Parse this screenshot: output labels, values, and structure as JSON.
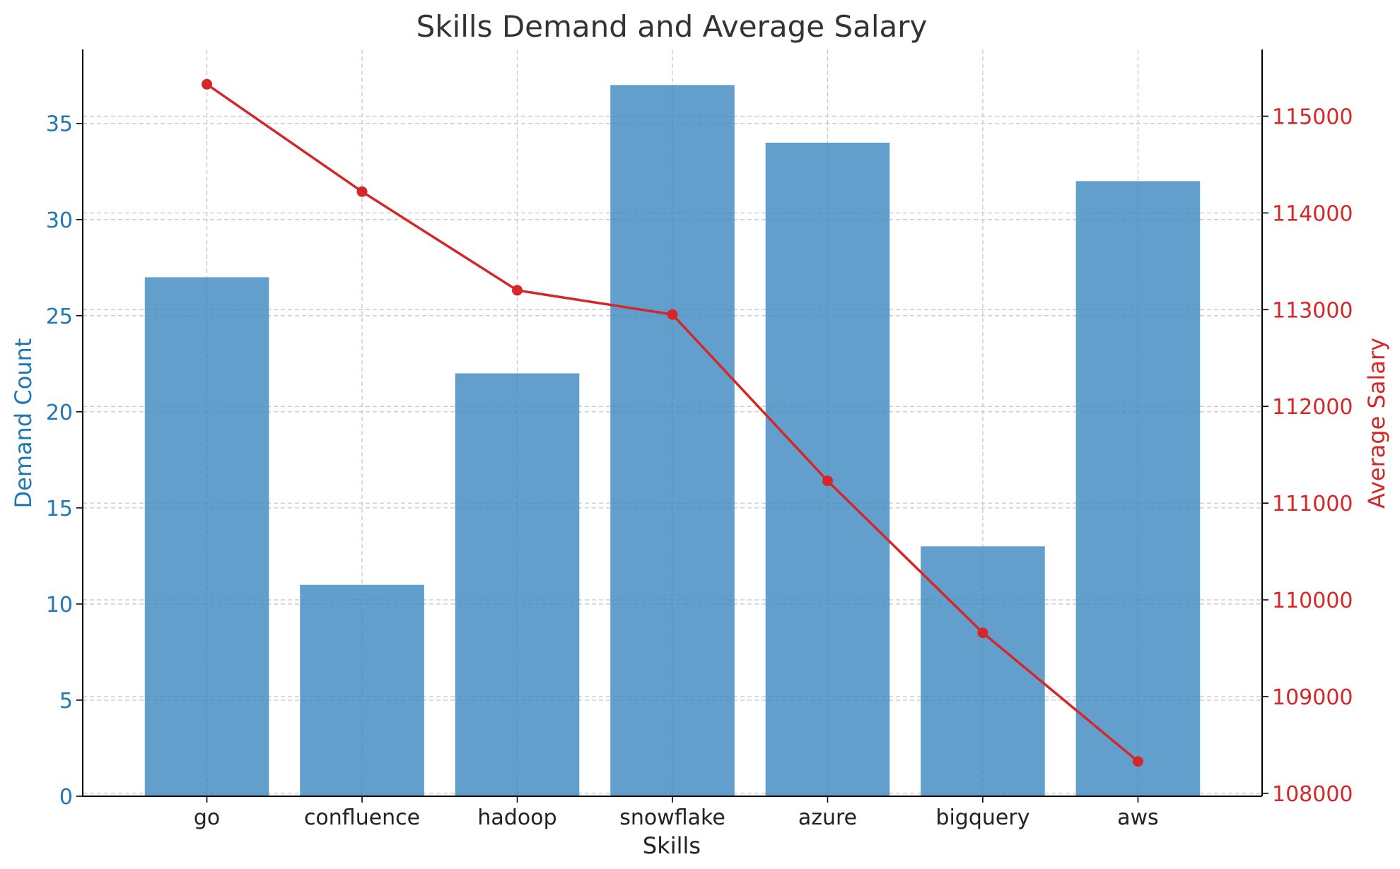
{
  "chart_data": {
    "type": "bar",
    "title": "Skills Demand and Average Salary",
    "xlabel": "Skills",
    "ylabel_left": "Demand Count",
    "ylabel_right": "Average Salary",
    "categories": [
      "go",
      "confluence",
      "hadoop",
      "snowflake",
      "azure",
      "bigquery",
      "aws"
    ],
    "series": [
      {
        "type": "bar",
        "axis": "left",
        "values": [
          27,
          11,
          22,
          37,
          34,
          13,
          32
        ],
        "color": "#3b87c0"
      },
      {
        "type": "line",
        "axis": "right",
        "values": [
          115330,
          114220,
          113200,
          112950,
          111230,
          109660,
          108330
        ],
        "color": "#d62728"
      }
    ],
    "ylim_left": [
      0,
      38.85
    ],
    "ylim_right": [
      107970,
      115690
    ],
    "yticks_left": [
      0,
      5,
      10,
      15,
      20,
      25,
      30,
      35
    ],
    "yticks_right": [
      108000,
      109000,
      110000,
      111000,
      112000,
      113000,
      114000,
      115000
    ],
    "grid": true,
    "colors": {
      "left_axis": "#1f77b4",
      "right_axis": "#d62728",
      "text": "#222222",
      "title": "#333333",
      "grid": "#c8c8c8"
    }
  }
}
